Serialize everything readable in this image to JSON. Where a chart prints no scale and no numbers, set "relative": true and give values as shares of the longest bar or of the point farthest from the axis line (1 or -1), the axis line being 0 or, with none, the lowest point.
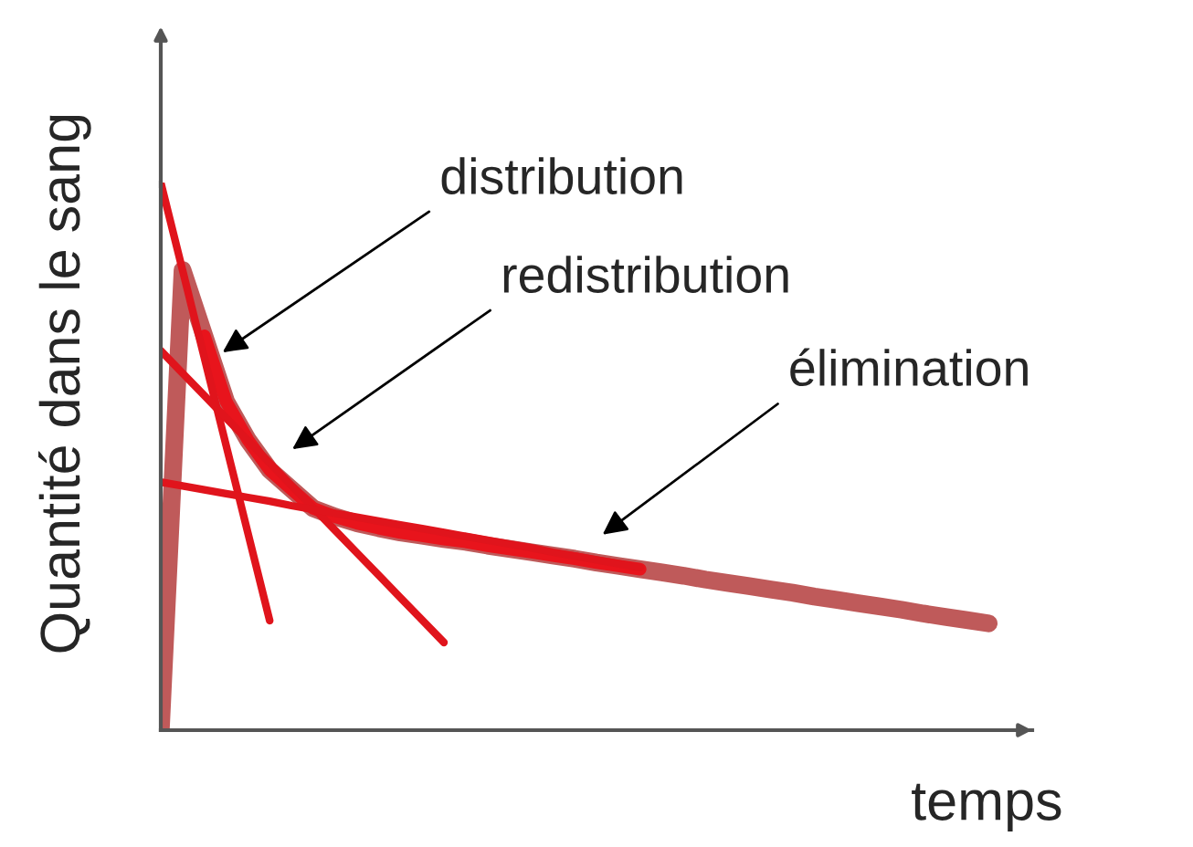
{
  "chart_data": {
    "type": "line",
    "relative": true,
    "xlabel": "temps",
    "ylabel": "Quantité dans le sang",
    "legend": false,
    "marker": "none",
    "line_style": "solid",
    "categories": [
      null,
      null,
      null,
      null,
      null,
      null,
      null,
      null,
      null,
      null,
      null,
      null,
      null,
      null,
      null,
      null,
      null,
      null,
      null,
      null,
      null,
      null,
      null,
      null,
      null,
      null,
      null,
      null,
      null,
      null,
      null,
      null,
      null,
      null,
      null,
      null,
      null,
      null,
      null,
      null,
      null
    ],
    "series": [
      {
        "color": "#bf5a5a",
        "values": [
          0.0,
          0.84,
          0.72,
          0.6,
          0.53,
          0.475,
          0.44,
          0.405,
          0.39,
          0.378,
          0.369,
          0.361,
          0.355,
          0.349,
          0.344,
          0.337,
          0.331,
          0.325,
          0.319,
          0.313,
          0.306,
          0.3,
          0.294,
          0.288,
          0.282,
          0.275,
          0.269,
          0.263,
          0.257,
          0.251,
          0.244,
          0.238,
          0.232,
          0.226,
          0.22,
          0.213,
          0.207,
          0.201,
          0.195,
          null,
          null
        ]
      },
      {
        "color": "#e8141c",
        "values": [
          null,
          null,
          0.72,
          0.6,
          0.53,
          0.475,
          0.44,
          0.405,
          0.39,
          0.378,
          0.369,
          0.361,
          0.355,
          0.349,
          0.344,
          0.337,
          0.331,
          0.325,
          0.319,
          0.313,
          0.306,
          0.3,
          0.294,
          null,
          null,
          null,
          null,
          null,
          null,
          null,
          null,
          null,
          null,
          null,
          null,
          null,
          null,
          null,
          null,
          null,
          null
        ]
      },
      {
        "color": "#e0141c",
        "values": [
          1.0,
          0.84,
          0.68,
          0.52,
          0.36,
          0.2,
          null,
          null,
          null,
          null,
          null,
          null,
          null,
          null,
          null,
          null,
          null,
          null,
          null,
          null,
          null,
          null,
          null,
          null,
          null,
          null,
          null,
          null,
          null,
          null,
          null,
          null,
          null,
          null,
          null,
          null,
          null,
          null,
          null,
          null,
          null
        ]
      },
      {
        "color": "#e0141c",
        "values": [
          0.693,
          0.652,
          0.611,
          0.57,
          0.529,
          0.488,
          0.447,
          0.406,
          0.365,
          0.324,
          0.283,
          0.242,
          0.201,
          0.16,
          null,
          null,
          null,
          null,
          null,
          null,
          null,
          null,
          null,
          null,
          null,
          null,
          null,
          null,
          null,
          null,
          null,
          null,
          null,
          null,
          null,
          null,
          null,
          null,
          null,
          null,
          null
        ]
      },
      {
        "color": "#e0141c",
        "values": [
          0.453,
          0.446,
          0.439,
          0.432,
          0.425,
          0.418,
          0.41,
          0.403,
          0.396,
          0.389,
          0.382,
          0.375,
          0.368,
          0.361,
          0.354,
          0.347,
          0.34,
          0.333,
          0.325,
          0.318,
          0.311,
          0.304,
          0.297,
          null,
          null,
          null,
          null,
          null,
          null,
          null,
          null,
          null,
          null,
          null,
          null,
          null,
          null,
          null,
          null,
          null,
          null
        ]
      }
    ],
    "annotations": [
      "distribution",
      "redistribution",
      "élimination"
    ]
  }
}
